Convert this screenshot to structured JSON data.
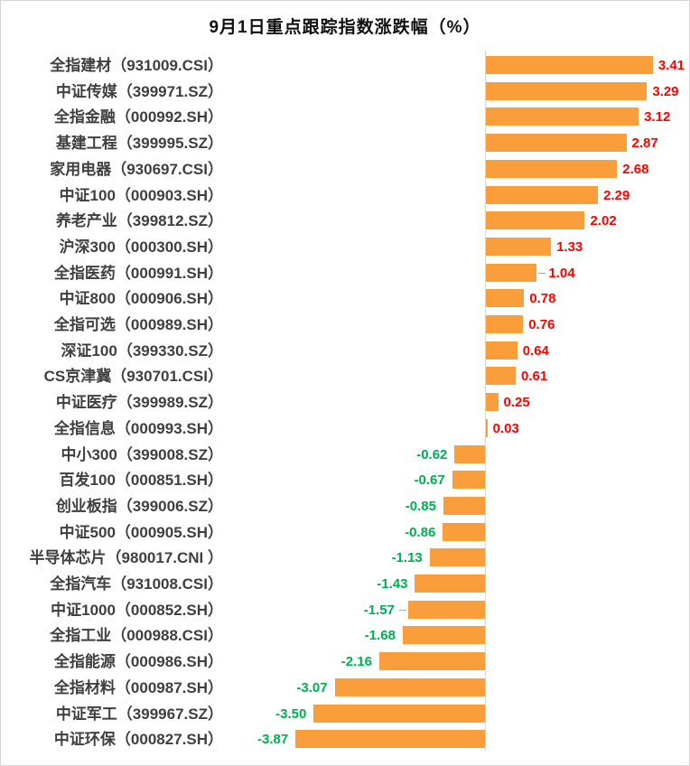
{
  "chart_data": {
    "type": "bar",
    "orientation": "horizontal",
    "title": "9月1日重点跟踪指数涨跌幅（%）",
    "value_unit": "%",
    "xlabel": "",
    "ylabel": "",
    "xlim": [
      -4.4,
      4.2
    ],
    "grid": false,
    "legend": false,
    "categories": [
      "全指建材（931009.CSI）",
      "中证传媒（399971.SZ）",
      "全指金融（000992.SH）",
      "基建工程（399995.SZ）",
      "家用电器（930697.CSI）",
      "中证100（000903.SH）",
      "养老产业（399812.SZ）",
      "沪深300（000300.SH）",
      "全指医药（000991.SH）",
      "中证800（000906.SH）",
      "全指可选（000989.SH）",
      "深证100（399330.SZ）",
      "CS京津冀（930701.CSI）",
      "中证医疗（399989.SZ）",
      "全指信息（000993.SH）",
      "中小300（399008.SZ）",
      "百发100（000851.SH）",
      "创业板指（399006.SZ）",
      "中证500（000905.SH）",
      "半导体芯片（980017.CNI ）",
      "全指汽车（931008.CSI）",
      "中证1000（000852.SH）",
      "全指工业（000988.CSI）",
      "全指能源（000986.SH）",
      "全指材料（000987.SH）",
      "中证军工（399967.SZ）",
      "中证环保（000827.SH）"
    ],
    "values": [
      3.41,
      3.29,
      3.12,
      2.87,
      2.68,
      2.29,
      2.02,
      1.33,
      1.04,
      0.78,
      0.76,
      0.64,
      0.61,
      0.25,
      0.03,
      -0.62,
      -0.67,
      -0.85,
      -0.86,
      -1.13,
      -1.43,
      -1.57,
      -1.68,
      -2.16,
      -3.07,
      -3.5,
      -3.87
    ],
    "label_leader_indexes": [
      8,
      21
    ],
    "colors": {
      "bar": "#f99e3b",
      "positive_value_label": "#ff0000",
      "negative_value_label": "#00b050",
      "category_label": "#3f3f3f",
      "axis_line": "#d9d9d9",
      "leader_line": "#a6a6a6",
      "page_border": "#d5d5d5",
      "background": "#ffffff"
    }
  }
}
